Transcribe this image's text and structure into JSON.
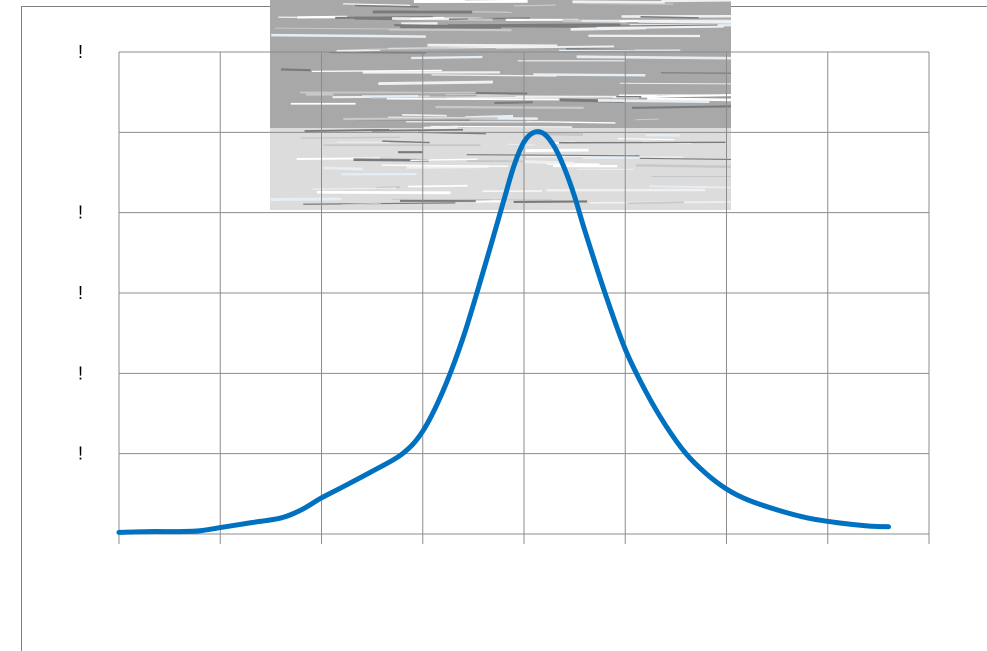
{
  "chart_data": {
    "type": "line",
    "title": "",
    "xlabel": "",
    "ylabel": "",
    "xlim": [
      0,
      8
    ],
    "ylim": [
      0,
      6
    ],
    "grid": true,
    "y_tick_labels": [
      "!",
      "",
      "!",
      "!",
      "!",
      "!",
      ""
    ],
    "y_tick_values": [
      6,
      5,
      4,
      3,
      2,
      1,
      0
    ],
    "x_tick_values": [
      0,
      1,
      2,
      3,
      4,
      5,
      6,
      7,
      8
    ],
    "series": [
      {
        "color": "#0070c0",
        "x": [
          0,
          0.3,
          0.6,
          0.8,
          1.0,
          1.3,
          1.6,
          1.8,
          2.0,
          2.2,
          2.5,
          2.8,
          3.0,
          3.2,
          3.4,
          3.6,
          3.8,
          3.9,
          4.0,
          4.1,
          4.2,
          4.3,
          4.4,
          4.5,
          4.6,
          4.8,
          5.0,
          5.2,
          5.4,
          5.6,
          5.8,
          6.0,
          6.2,
          6.5,
          6.8,
          7.1,
          7.4,
          7.6
        ],
        "y": [
          0.02,
          0.03,
          0.03,
          0.04,
          0.08,
          0.14,
          0.2,
          0.3,
          0.45,
          0.58,
          0.78,
          1.0,
          1.28,
          1.78,
          2.45,
          3.28,
          4.15,
          4.58,
          4.88,
          5.0,
          4.98,
          4.82,
          4.55,
          4.2,
          3.78,
          3.0,
          2.3,
          1.78,
          1.35,
          1.0,
          0.75,
          0.56,
          0.43,
          0.3,
          0.2,
          0.14,
          0.1,
          0.09
        ]
      }
    ]
  },
  "watermark_strip": "gray-noise-band"
}
